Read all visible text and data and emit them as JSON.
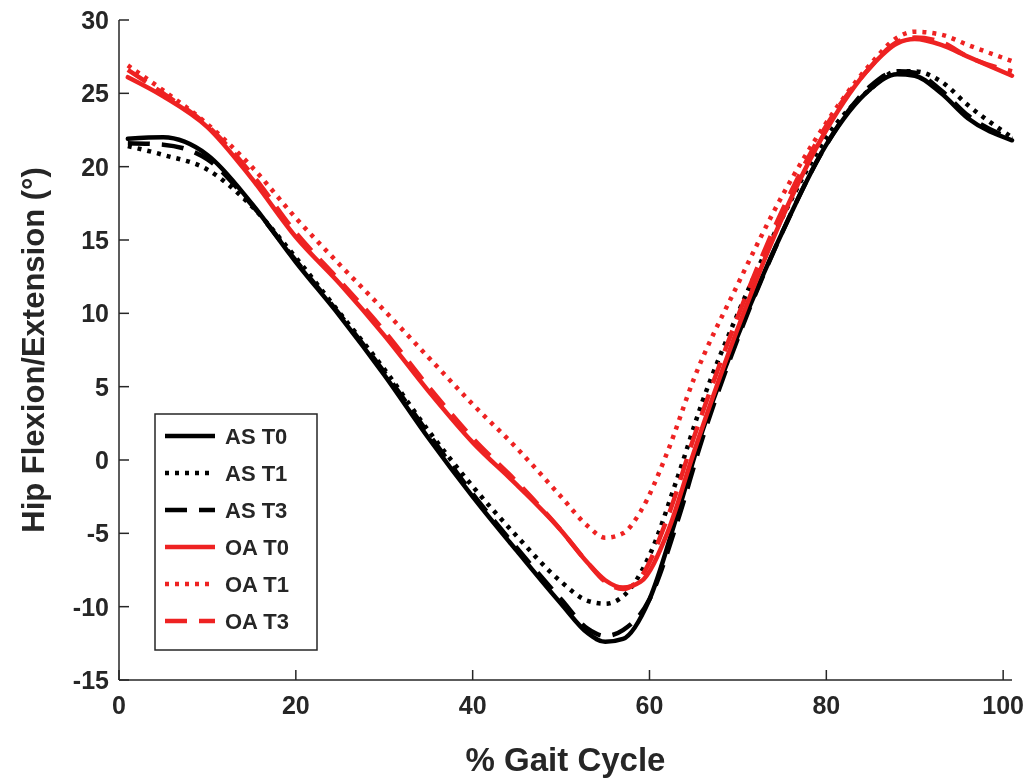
{
  "chart_data": {
    "type": "line",
    "xlabel": "% Gait Cycle",
    "ylabel": "Hip Flexion/Extension (°)",
    "xlim": [
      0,
      101
    ],
    "ylim": [
      -15,
      30
    ],
    "xticks": [
      0,
      20,
      40,
      60,
      80,
      100
    ],
    "yticks": [
      -15,
      -10,
      -5,
      0,
      5,
      10,
      15,
      20,
      25,
      30
    ],
    "grid": false,
    "legend": "bottom left",
    "x": [
      1,
      5,
      10,
      15,
      20,
      25,
      30,
      35,
      40,
      45,
      50,
      53,
      55,
      57,
      60,
      63,
      66,
      70,
      75,
      80,
      85,
      88,
      90,
      93,
      96,
      101
    ],
    "series": [
      {
        "name": "AS T0",
        "color": "#000000",
        "line_style": "solid",
        "values": [
          21.9,
          22.0,
          20.8,
          17.5,
          13.5,
          9.8,
          5.8,
          1.5,
          -2.5,
          -6.2,
          -9.8,
          -11.8,
          -12.4,
          -12.2,
          -9.5,
          -4,
          2,
          8.5,
          15.5,
          21.5,
          25.3,
          26.3,
          26.2,
          25,
          23.3,
          21.8
        ]
      },
      {
        "name": "AS T1",
        "color": "#000000",
        "line_style": "dotted",
        "values": [
          21.4,
          20.8,
          19.8,
          17.3,
          13.8,
          10,
          6.2,
          2,
          -1.8,
          -5.2,
          -8.3,
          -9.6,
          -9.8,
          -9.3,
          -6.5,
          -1.5,
          4,
          10,
          16.5,
          22,
          25.3,
          26.5,
          26.5,
          25.8,
          24.2,
          22
        ]
      },
      {
        "name": "AS T3",
        "color": "#000000",
        "line_style": "dashed",
        "values": [
          21.6,
          21.5,
          20.5,
          17.4,
          13.6,
          9.9,
          6,
          1.8,
          -2.3,
          -6,
          -9.5,
          -11.5,
          -12,
          -11.6,
          -9.5,
          -4.5,
          1.5,
          8.3,
          15.5,
          21.5,
          25.5,
          26.5,
          26.4,
          25.2,
          23.5,
          21.9
        ]
      },
      {
        "name": "OA T0",
        "color": "#ee2222",
        "line_style": "solid",
        "x": [
          1,
          5,
          10,
          15,
          20,
          25,
          30,
          35,
          40,
          45,
          50,
          53,
          55,
          57,
          59,
          62,
          65,
          70,
          75,
          80,
          85,
          88,
          90,
          93,
          96,
          101
        ],
        "values": [
          26.1,
          24.8,
          22.7,
          19.2,
          15.2,
          12,
          8.5,
          4.7,
          1.2,
          -1.7,
          -4.8,
          -7,
          -8.2,
          -8.7,
          -8.3,
          -5,
          0.5,
          9,
          16.5,
          22.5,
          26.8,
          28.4,
          28.7,
          28.3,
          27.5,
          26.2
        ]
      },
      {
        "name": "OA T1",
        "color": "#ee2222",
        "line_style": "dotted",
        "x": [
          1,
          5,
          10,
          15,
          20,
          25,
          30,
          35,
          40,
          45,
          50,
          53,
          55,
          57,
          59,
          62,
          65,
          70,
          75,
          80,
          85,
          88,
          90,
          93,
          96,
          101
        ],
        "values": [
          26.9,
          25.2,
          22.9,
          20,
          16.5,
          13.3,
          10.2,
          7,
          3.8,
          0.8,
          -2.5,
          -4.5,
          -5.3,
          -5,
          -3.5,
          0.5,
          5.5,
          12,
          18,
          23,
          27,
          28.8,
          29.2,
          29,
          28.3,
          27.2
        ]
      },
      {
        "name": "OA T3",
        "color": "#ee2222",
        "line_style": "dashed",
        "x": [
          1,
          5,
          10,
          15,
          20,
          25,
          30,
          35,
          40,
          45,
          50,
          53,
          55,
          57,
          59,
          62,
          65,
          70,
          75,
          80,
          85,
          88,
          90,
          93,
          96,
          101
        ],
        "values": [
          26.6,
          25,
          22.8,
          19.5,
          15.5,
          12.2,
          8.8,
          5,
          1.5,
          -1.5,
          -4.8,
          -7,
          -8.3,
          -8.8,
          -8,
          -4,
          1.5,
          9.8,
          17,
          22.8,
          26.8,
          28.5,
          28.8,
          28.5,
          27.5,
          26.5
        ]
      }
    ]
  }
}
